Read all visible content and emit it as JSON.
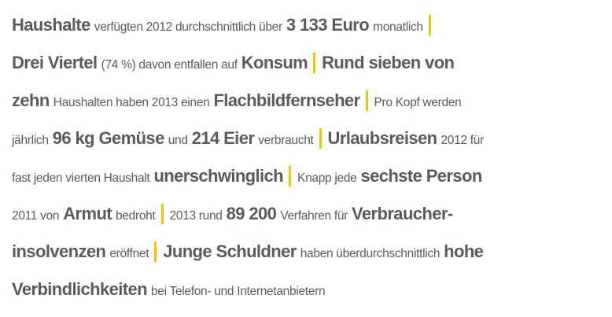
{
  "colors": {
    "text": "#5e5a56",
    "separator": "#f5c400"
  },
  "lines": [
    [
      {
        "t": "b",
        "v": "Haushalte"
      },
      {
        "t": "n",
        "v": "verfügten 2012 durchschnittlich über"
      },
      {
        "t": "b",
        "v": "3 133 Euro"
      },
      {
        "t": "n",
        "v": "monatlich"
      },
      {
        "t": "sep"
      }
    ],
    [
      {
        "t": "b",
        "v": "Drei Viertel"
      },
      {
        "t": "n",
        "v": "(74 %) davon entfallen auf"
      },
      {
        "t": "b",
        "v": "Konsum"
      },
      {
        "t": "sep"
      },
      {
        "t": "b",
        "v": "Rund sieben von"
      }
    ],
    [
      {
        "t": "b",
        "v": "zehn"
      },
      {
        "t": "n",
        "v": "Haushalten haben 2013 einen"
      },
      {
        "t": "b",
        "v": "Flachbildfernseher"
      },
      {
        "t": "sep"
      },
      {
        "t": "n",
        "v": "Pro Kopf werden"
      }
    ],
    [
      {
        "t": "n",
        "v": "jährlich"
      },
      {
        "t": "b",
        "v": "96 kg Gemüse"
      },
      {
        "t": "n",
        "v": "und"
      },
      {
        "t": "b",
        "v": "214 Eier"
      },
      {
        "t": "n",
        "v": "verbraucht"
      },
      {
        "t": "sep"
      },
      {
        "t": "b",
        "v": "Urlaubsreisen"
      },
      {
        "t": "n",
        "v": "2012 für"
      }
    ],
    [
      {
        "t": "n",
        "v": "fast jeden vierten Haushalt"
      },
      {
        "t": "b",
        "v": "unerschwinglich"
      },
      {
        "t": "sep"
      },
      {
        "t": "n",
        "v": "Knapp jede"
      },
      {
        "t": "b",
        "v": "sechste Person"
      }
    ],
    [
      {
        "t": "n",
        "v": "2011 von"
      },
      {
        "t": "b",
        "v": "Armut"
      },
      {
        "t": "n",
        "v": "bedroht"
      },
      {
        "t": "sep"
      },
      {
        "t": "n",
        "v": "2013 rund"
      },
      {
        "t": "b",
        "v": "89 200"
      },
      {
        "t": "n",
        "v": "Verfahren für"
      },
      {
        "t": "b",
        "v": "Verbraucher-"
      }
    ],
    [
      {
        "t": "b",
        "v": "insolvenzen"
      },
      {
        "t": "n",
        "v": "eröffnet"
      },
      {
        "t": "sep"
      },
      {
        "t": "b",
        "v": "Junge Schuldner"
      },
      {
        "t": "n",
        "v": "haben überdurchschnittlich"
      },
      {
        "t": "b",
        "v": "hohe"
      }
    ],
    [
      {
        "t": "b",
        "v": "Verbindlichkeiten"
      },
      {
        "t": "n",
        "v": "bei Telefon- und Internetanbietern"
      }
    ]
  ]
}
